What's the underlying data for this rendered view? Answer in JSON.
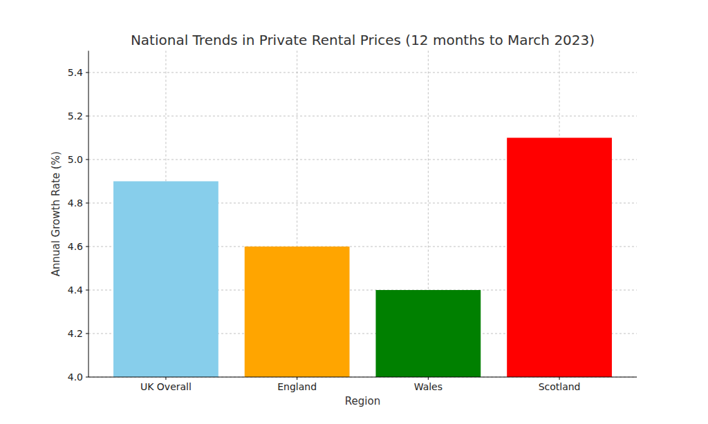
{
  "chart_data": {
    "type": "bar",
    "title": "National Trends in Private Rental Prices (12 months to March 2023)",
    "x_label": "Region",
    "y_label": "Annual Growth Rate (%)",
    "categories": [
      "UK Overall",
      "England",
      "Wales",
      "Scotland"
    ],
    "values": [
      4.9,
      4.6,
      4.4,
      5.1
    ],
    "colors": [
      "#87ceeb",
      "#ffa500",
      "#008000",
      "#ff0000"
    ],
    "ylim": [
      4.0,
      5.5
    ],
    "yticks": [
      {
        "value": 4.0,
        "label": "4.0"
      },
      4.2,
      4.4,
      4.6,
      4.8,
      {
        "value": 5.0,
        "label": "5.0"
      },
      5.2,
      5.4
    ],
    "grid": true
  }
}
